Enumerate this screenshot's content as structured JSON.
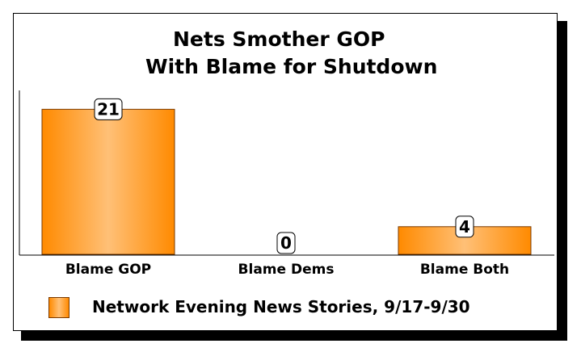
{
  "chart_data": {
    "type": "bar",
    "title": [
      "Nets Smother GOP",
      "With Blame for Shutdown"
    ],
    "categories": [
      "Blame GOP",
      "Blame Dems",
      "Blame Both"
    ],
    "series": [
      {
        "name": "Network Evening News Stories, 9/17-9/30",
        "values": [
          21,
          0,
          4
        ]
      }
    ],
    "data_labels": [
      "21",
      "0",
      "4"
    ],
    "ylim": [
      0,
      25
    ],
    "grid": false,
    "legend_position": "bottom-left",
    "colors": {
      "bar_edge": "#ff8a00",
      "bar_center": "#ffc077",
      "bar_border": "#7a3a00"
    }
  }
}
